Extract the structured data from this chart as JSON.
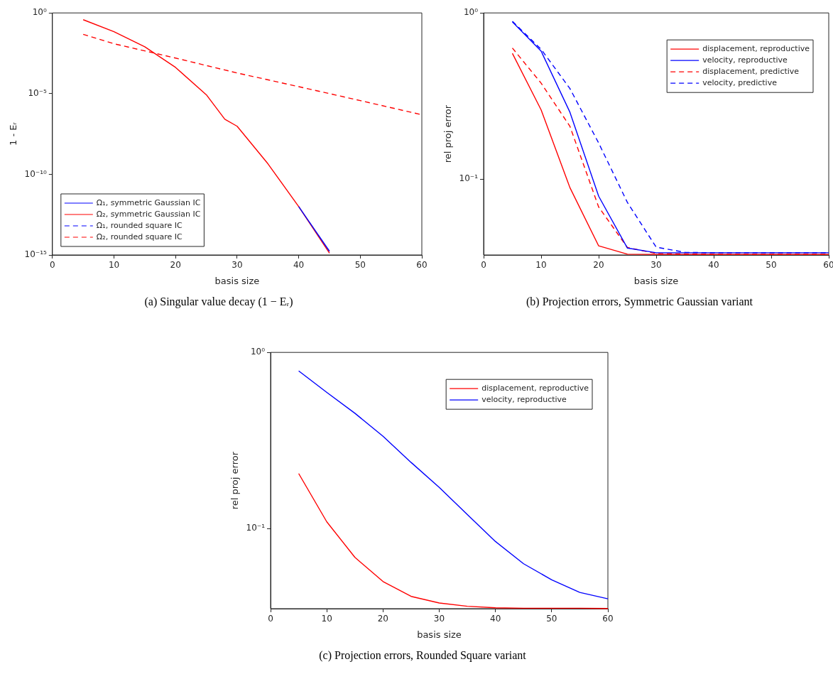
{
  "chart_data": [
    {
      "type": "line",
      "xlabel": "basis size",
      "ylabel": "1 - Eᵣ",
      "xlim": [
        0,
        60
      ],
      "xticks": [
        0,
        10,
        20,
        30,
        40,
        50,
        60
      ],
      "ylim": [
        1e-15,
        1
      ],
      "yticks": [
        {
          "value": 1e-15,
          "label": "10⁻¹⁵"
        },
        {
          "value": 1e-10,
          "label": "10⁻¹⁰"
        },
        {
          "value": 1e-05,
          "label": "10⁻⁵"
        },
        {
          "value": 1,
          "label": "10⁰"
        }
      ],
      "log": "y",
      "legend": "bottom left",
      "annotations": [
        "(a) Singular value decay (1 − Eᵣ)"
      ],
      "series": [
        {
          "name": "Ω₁, symmetric Gaussian IC",
          "color": "#0000ff",
          "line_style": "solid",
          "x": [
            40,
            45
          ],
          "values": [
            1e-12,
            1.7e-15
          ]
        },
        {
          "name": "Ω₂, symmetric Gaussian IC",
          "color": "#ff0000",
          "line_style": "solid",
          "x": [
            5,
            10,
            15,
            20,
            25,
            28,
            30,
            35,
            40,
            45
          ],
          "values": [
            0.38,
            0.069,
            0.008,
            0.00042,
            8.5e-06,
            2.6e-07,
            9.5e-08,
            4.5e-10,
            1e-12,
            1.3e-15
          ]
        },
        {
          "name": "Ω₁, rounded square IC",
          "color": "#0000ff",
          "line_style": "dashed"
        },
        {
          "name": "Ω₂, rounded square IC",
          "color": "#ff0000",
          "line_style": "dashed",
          "x": [
            5,
            10,
            20,
            30,
            40,
            50,
            60
          ],
          "values": [
            0.047,
            0.0123,
            0.0016,
            0.00019,
            2.7e-05,
            3.7e-06,
            4.9e-07
          ]
        }
      ]
    },
    {
      "type": "line",
      "xlabel": "basis size",
      "ylabel": "rel proj error",
      "xlim": [
        0,
        60
      ],
      "xticks": [
        0,
        10,
        20,
        30,
        40,
        50,
        60
      ],
      "ylim": [
        0.035,
        1
      ],
      "yticks": [
        {
          "value": 0.1,
          "label": "10⁻¹"
        },
        {
          "value": 1,
          "label": "10⁰"
        }
      ],
      "log": "y",
      "legend": "top right",
      "annotations": [
        "(b) Projection errors, Symmetric Gaussian variant"
      ],
      "series": [
        {
          "name": "displacement, reproductive",
          "color": "#ff0000",
          "line_style": "solid",
          "x": [
            5,
            10,
            15,
            20,
            25,
            30,
            40,
            50,
            60
          ],
          "values": [
            0.571,
            0.261,
            0.089,
            0.0397,
            0.0354,
            0.0353,
            0.0353,
            0.0353,
            0.0353
          ]
        },
        {
          "name": "velocity, reproductive",
          "color": "#0000ff",
          "line_style": "solid",
          "x": [
            5,
            10,
            15,
            20,
            25,
            30,
            40,
            50,
            60
          ],
          "values": [
            0.883,
            0.589,
            0.253,
            0.079,
            0.0385,
            0.0361,
            0.0361,
            0.0361,
            0.0361
          ]
        },
        {
          "name": "displacement, predictive",
          "color": "#ff0000",
          "line_style": "dashed",
          "x": [
            5,
            10,
            15,
            20,
            25,
            30,
            40,
            50,
            60
          ],
          "values": [
            0.615,
            0.378,
            0.208,
            0.068,
            0.0388,
            0.0357,
            0.0353,
            0.0353,
            0.0353
          ]
        },
        {
          "name": "velocity, predictive",
          "color": "#0000ff",
          "line_style": "dashed",
          "x": [
            5,
            10,
            15,
            20,
            25,
            30,
            35,
            40,
            50,
            60
          ],
          "values": [
            0.891,
            0.604,
            0.351,
            0.165,
            0.0724,
            0.039,
            0.0363,
            0.0361,
            0.0361,
            0.0361
          ]
        }
      ]
    },
    {
      "type": "line",
      "xlabel": "basis size",
      "ylabel": "rel proj error",
      "xlim": [
        0,
        60
      ],
      "xticks": [
        0,
        10,
        20,
        30,
        40,
        50,
        60
      ],
      "ylim": [
        0.035,
        1
      ],
      "yticks": [
        {
          "value": 0.1,
          "label": "10⁻¹"
        },
        {
          "value": 1,
          "label": "10⁰"
        }
      ],
      "log": "y",
      "legend": "top right",
      "annotations": [
        "(c) Projection errors, Rounded Square variant"
      ],
      "series": [
        {
          "name": "displacement, reproductive",
          "color": "#ff0000",
          "line_style": "solid",
          "x": [
            5,
            10,
            15,
            20,
            25,
            30,
            35,
            40,
            45,
            50,
            55,
            60
          ],
          "values": [
            0.205,
            0.109,
            0.0685,
            0.0499,
            0.0411,
            0.0377,
            0.0361,
            0.0354,
            0.0352,
            0.0352,
            0.0352,
            0.0351
          ]
        },
        {
          "name": "velocity, reproductive",
          "color": "#0000ff",
          "line_style": "solid",
          "x": [
            5,
            10,
            15,
            20,
            25,
            30,
            35,
            40,
            45,
            50,
            55,
            60
          ],
          "values": [
            0.785,
            0.593,
            0.451,
            0.334,
            0.237,
            0.171,
            0.12,
            0.0843,
            0.063,
            0.0511,
            0.0433,
            0.0398
          ]
        }
      ]
    }
  ]
}
